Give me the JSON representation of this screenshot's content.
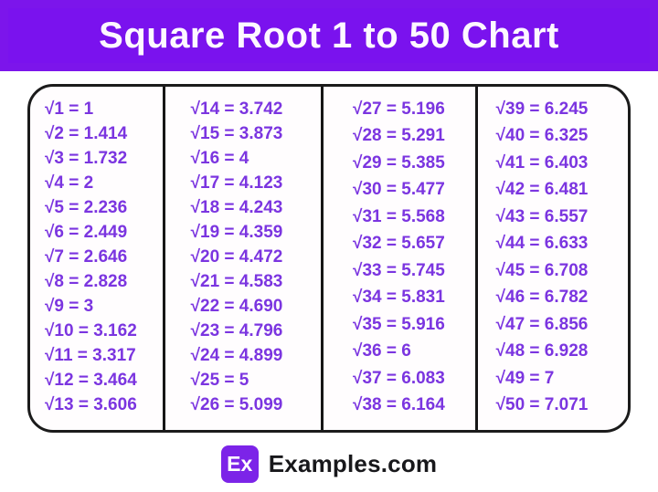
{
  "header": {
    "title": "Square Root 1 to 50 Chart"
  },
  "colors": {
    "banner_background": "#7a12ee",
    "banner_text": "#fdf8ff",
    "entry_text": "#7b35e0",
    "box_border": "#1b1b1b",
    "logo_badge_background": "#7c24e8",
    "brand_text": "#18181b"
  },
  "chart_data": {
    "type": "table",
    "title": "Square Root 1 to 50 Chart",
    "columns": [
      {
        "entries": [
          "√1 = 1",
          "√2 = 1.414",
          "√3 = 1.732",
          "√4 = 2",
          "√5 = 2.236",
          "√6 = 2.449",
          "√7 = 2.646",
          "√8 = 2.828",
          "√9 = 3",
          "√10 = 3.162",
          "√11 = 3.317",
          "√12 = 3.464",
          "√13 = 3.606"
        ]
      },
      {
        "entries": [
          "√14 = 3.742",
          "√15 = 3.873",
          "√16 = 4",
          "√17 = 4.123",
          "√18 = 4.243",
          "√19 = 4.359",
          "√20 = 4.472",
          "√21 = 4.583",
          "√22 = 4.690",
          "√23 = 4.796",
          "√24 = 4.899",
          "√25 = 5",
          "√26 = 5.099"
        ]
      },
      {
        "entries": [
          "√27 = 5.196",
          "√28 = 5.291",
          "√29 = 5.385",
          "√30 = 5.477",
          "√31 = 5.568",
          "√32 = 5.657",
          "√33 = 5.745",
          "√34 = 5.831",
          "√35 = 5.916",
          "√36 = 6",
          "√37 = 6.083",
          "√38 = 6.164"
        ]
      },
      {
        "entries": [
          "√39 = 6.245",
          "√40 = 6.325",
          "√41 = 6.403",
          "√42 = 6.481",
          "√43 = 6.557",
          "√44 = 6.633",
          "√45 = 6.708",
          "√46 = 6.782",
          "√47 = 6.856",
          "√48 = 6.928",
          "√49 = 7",
          "√50 = 7.071"
        ]
      }
    ]
  },
  "footer": {
    "logo_badge": "Ex",
    "brand": "Examples.com"
  }
}
